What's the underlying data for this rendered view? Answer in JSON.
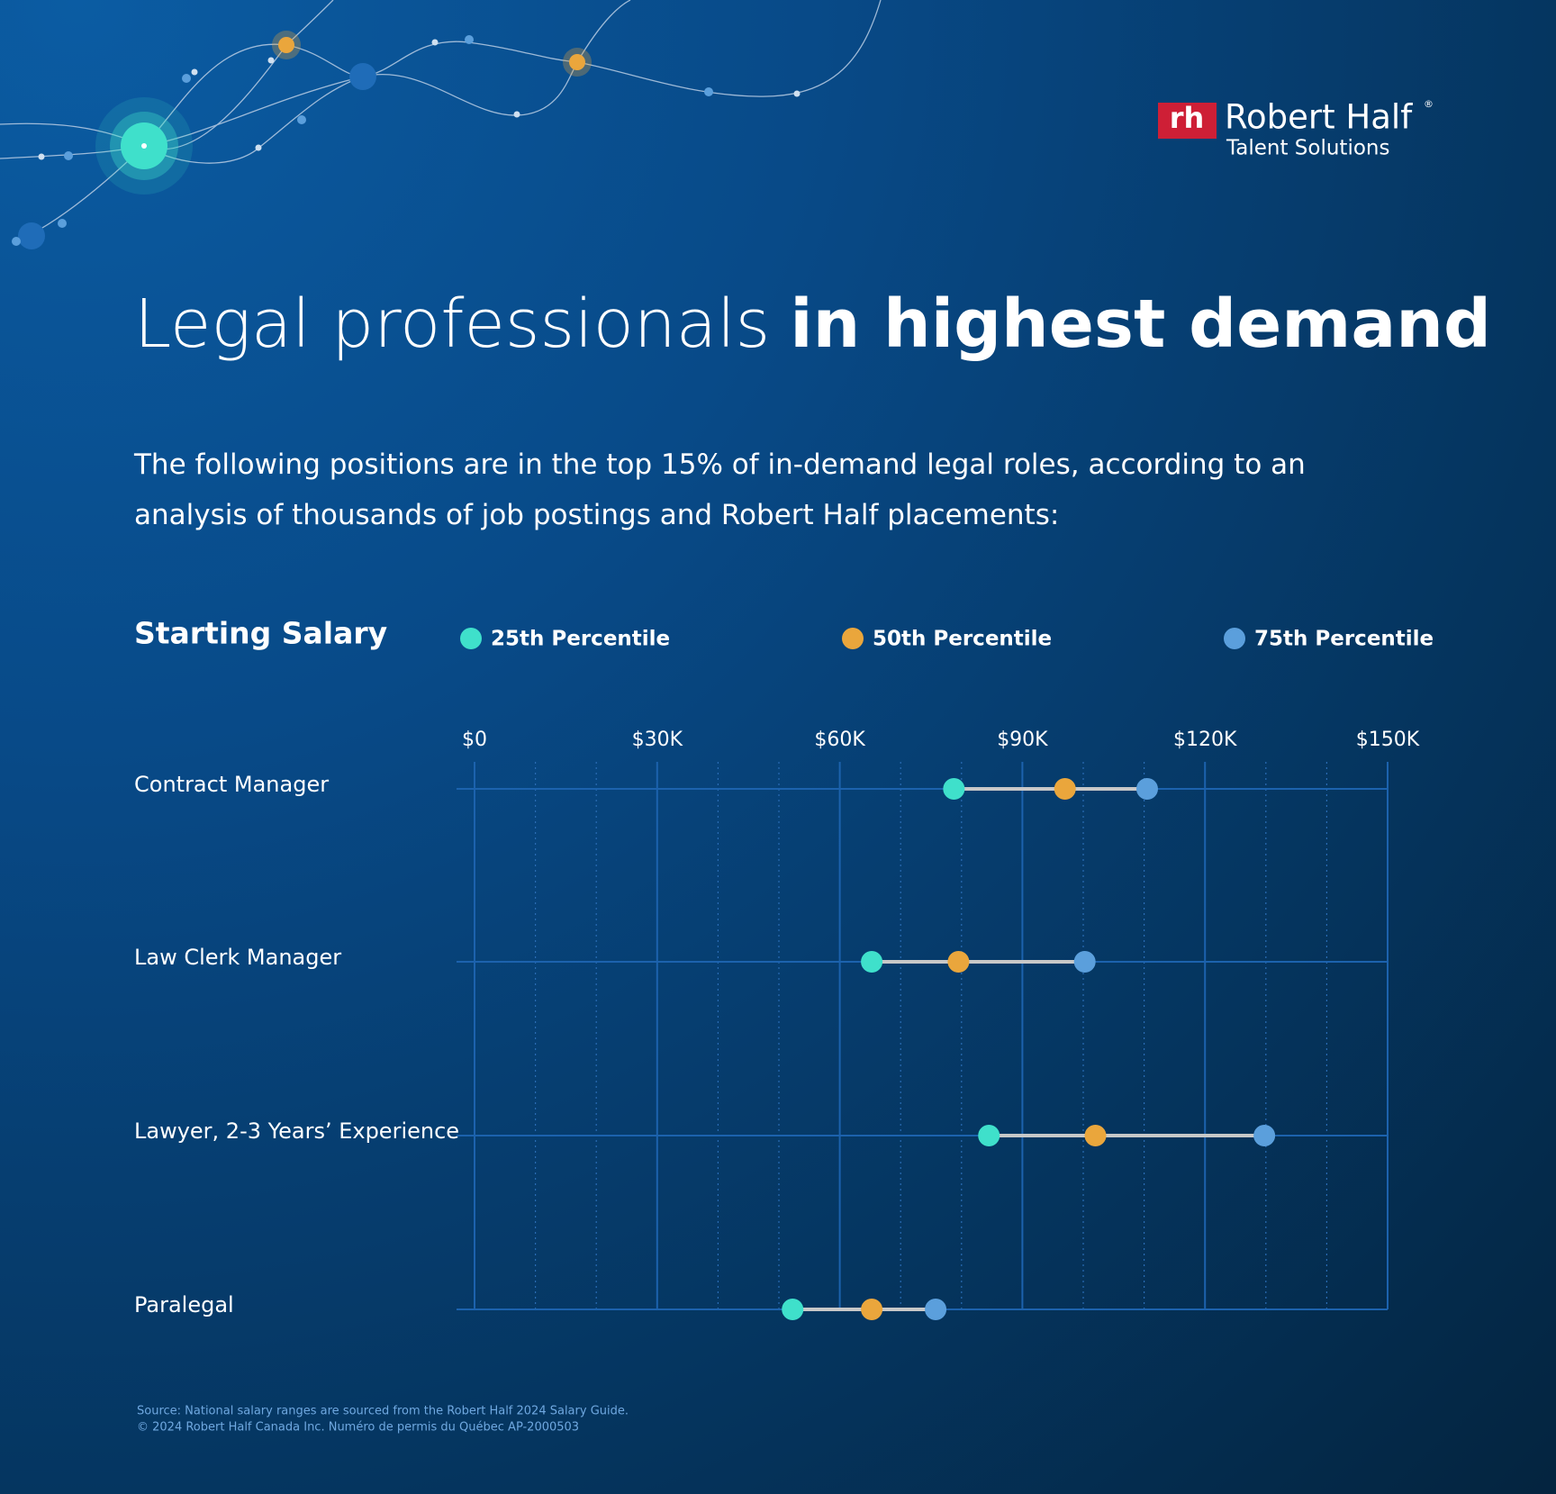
{
  "logo": {
    "mark": "rh",
    "name": "Robert Half",
    "registered": "®",
    "tagline": "Talent Solutions"
  },
  "title": {
    "regular": "Legal professionals",
    "bold": "in highest demand"
  },
  "subtitle": "The following positions are in the top 15% of in-demand legal roles, according to an analysis of thousands of job postings and Robert Half placements:",
  "chart_data": {
    "type": "dumbbell",
    "title": "Starting Salary",
    "categories": [
      "Contract Manager",
      "Law Clerk Manager",
      "Lawyer, 2-3 Years’ Experience",
      "Paralegal"
    ],
    "series": [
      {
        "name": "25th Percentile",
        "color": "#3fe0cb",
        "values": [
          78.75,
          65.25,
          84.5,
          52.25
        ]
      },
      {
        "name": "50th Percentile",
        "color": "#eaa63c",
        "values": [
          97,
          79.5,
          102,
          65.25
        ]
      },
      {
        "name": "75th Percentile",
        "color": "#5b9fdc",
        "values": [
          110.5,
          100.25,
          129.75,
          75.75
        ]
      }
    ],
    "xlim": [
      0,
      150
    ],
    "xticks": [
      {
        "value": 0,
        "label": "$0"
      },
      {
        "value": 30,
        "label": "$30K"
      },
      {
        "value": 60,
        "label": "$60K"
      },
      {
        "value": 90,
        "label": "$90K"
      },
      {
        "value": 120,
        "label": "$120K"
      },
      {
        "value": 150,
        "label": "$150K"
      }
    ],
    "grid": true,
    "minor_grid": true,
    "legend": "top"
  },
  "footer": [
    "Source: National salary ranges are sourced from the Robert Half 2024 Salary Guide.",
    "© 2024 Robert Half Canada Inc. Numéro de permis du Québec AP-2000503"
  ]
}
